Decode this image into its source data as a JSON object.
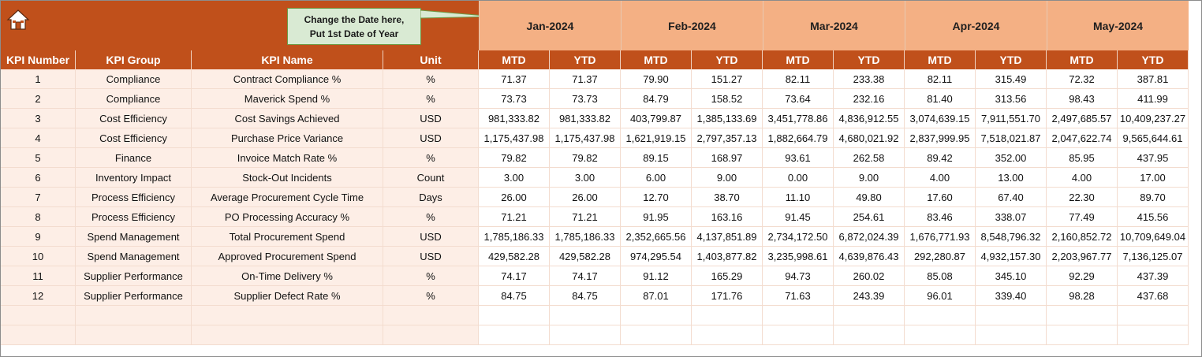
{
  "colors": {
    "banner": "#c0501b",
    "month_band": "#f4b084",
    "header_text": "#ffffff",
    "body_left_fill": "#fdeee6",
    "callout_fill": "#d9ead3"
  },
  "toolbar": {
    "home_icon": "home-icon"
  },
  "callout": {
    "line1": "Change the Date here,",
    "line2": "Put 1st Date of Year"
  },
  "months": [
    "Jan-2024",
    "Feb-2024",
    "Mar-2024",
    "Apr-2024",
    "May-2024"
  ],
  "headers": {
    "kpi_number": "KPI Number",
    "kpi_group": "KPI Group",
    "kpi_name": "KPI Name",
    "unit": "Unit",
    "mtd": "MTD",
    "ytd": "YTD"
  },
  "rows": [
    {
      "num": "1",
      "group": "Compliance",
      "name": "Contract Compliance %",
      "unit": "%",
      "values": [
        "71.37",
        "71.37",
        "79.90",
        "151.27",
        "82.11",
        "233.38",
        "82.11",
        "315.49",
        "72.32",
        "387.81"
      ]
    },
    {
      "num": "2",
      "group": "Compliance",
      "name": "Maverick Spend %",
      "unit": "%",
      "values": [
        "73.73",
        "73.73",
        "84.79",
        "158.52",
        "73.64",
        "232.16",
        "81.40",
        "313.56",
        "98.43",
        "411.99"
      ]
    },
    {
      "num": "3",
      "group": "Cost Efficiency",
      "name": "Cost Savings Achieved",
      "unit": "USD",
      "values": [
        "981,333.82",
        "981,333.82",
        "403,799.87",
        "1,385,133.69",
        "3,451,778.86",
        "4,836,912.55",
        "3,074,639.15",
        "7,911,551.70",
        "2,497,685.57",
        "10,409,237.27"
      ]
    },
    {
      "num": "4",
      "group": "Cost Efficiency",
      "name": "Purchase Price Variance",
      "unit": "USD",
      "values": [
        "1,175,437.98",
        "1,175,437.98",
        "1,621,919.15",
        "2,797,357.13",
        "1,882,664.79",
        "4,680,021.92",
        "2,837,999.95",
        "7,518,021.87",
        "2,047,622.74",
        "9,565,644.61"
      ]
    },
    {
      "num": "5",
      "group": "Finance",
      "name": "Invoice Match Rate %",
      "unit": "%",
      "values": [
        "79.82",
        "79.82",
        "89.15",
        "168.97",
        "93.61",
        "262.58",
        "89.42",
        "352.00",
        "85.95",
        "437.95"
      ]
    },
    {
      "num": "6",
      "group": "Inventory Impact",
      "name": "Stock-Out Incidents",
      "unit": "Count",
      "values": [
        "3.00",
        "3.00",
        "6.00",
        "9.00",
        "0.00",
        "9.00",
        "4.00",
        "13.00",
        "4.00",
        "17.00"
      ]
    },
    {
      "num": "7",
      "group": "Process Efficiency",
      "name": "Average Procurement Cycle Time",
      "unit": "Days",
      "values": [
        "26.00",
        "26.00",
        "12.70",
        "38.70",
        "11.10",
        "49.80",
        "17.60",
        "67.40",
        "22.30",
        "89.70"
      ]
    },
    {
      "num": "8",
      "group": "Process Efficiency",
      "name": "PO Processing Accuracy %",
      "unit": "%",
      "values": [
        "71.21",
        "71.21",
        "91.95",
        "163.16",
        "91.45",
        "254.61",
        "83.46",
        "338.07",
        "77.49",
        "415.56"
      ]
    },
    {
      "num": "9",
      "group": "Spend Management",
      "name": "Total Procurement Spend",
      "unit": "USD",
      "values": [
        "1,785,186.33",
        "1,785,186.33",
        "2,352,665.56",
        "4,137,851.89",
        "2,734,172.50",
        "6,872,024.39",
        "1,676,771.93",
        "8,548,796.32",
        "2,160,852.72",
        "10,709,649.04"
      ]
    },
    {
      "num": "10",
      "group": "Spend Management",
      "name": "Approved Procurement Spend",
      "unit": "USD",
      "values": [
        "429,582.28",
        "429,582.28",
        "974,295.54",
        "1,403,877.82",
        "3,235,998.61",
        "4,639,876.43",
        "292,280.87",
        "4,932,157.30",
        "2,203,967.77",
        "7,136,125.07"
      ]
    },
    {
      "num": "11",
      "group": "Supplier Performance",
      "name": "On-Time Delivery %",
      "unit": "%",
      "values": [
        "74.17",
        "74.17",
        "91.12",
        "165.29",
        "94.73",
        "260.02",
        "85.08",
        "345.10",
        "92.29",
        "437.39"
      ]
    },
    {
      "num": "12",
      "group": "Supplier Performance",
      "name": "Supplier Defect Rate %",
      "unit": "%",
      "values": [
        "84.75",
        "84.75",
        "87.01",
        "171.76",
        "71.63",
        "243.39",
        "96.01",
        "339.40",
        "98.28",
        "437.68"
      ]
    }
  ]
}
